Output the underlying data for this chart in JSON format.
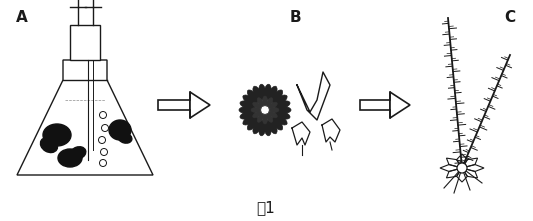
{
  "title": "图1",
  "title_fontsize": 11,
  "label_A": "A",
  "label_B": "B",
  "label_C": "C",
  "bg_color": "#ffffff",
  "draw_color": "#1a1a1a",
  "fig_width": 5.33,
  "fig_height": 2.21,
  "dpi": 100
}
